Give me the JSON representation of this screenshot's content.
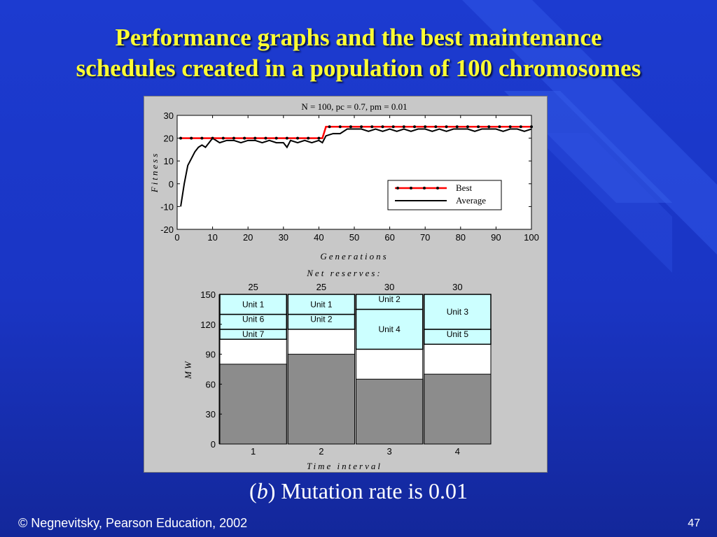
{
  "title": {
    "line1": "Performance graphs and the best maintenance",
    "line2": "schedules created in a population of 100 chromosomes"
  },
  "caption": {
    "prefix": "(",
    "b": "b",
    "suffix": ") Mutation rate is 0.01"
  },
  "footer": "© Negnevitsky, Pearson Education, 2002",
  "page_number": "47",
  "colors": {
    "title": "#ffff33",
    "best_line": "#ff0000",
    "reserve_fill": "#8c8c8c",
    "unit_fill": "#ccffff"
  },
  "chart_data": [
    {
      "type": "line",
      "title": "N = 100,  pc = 0.7,  pm = 0.01",
      "xlabel": "Generations",
      "ylabel": "Fitness",
      "xlim": [
        0,
        100
      ],
      "ylim": [
        -20,
        30
      ],
      "xticks": [
        "0",
        "10",
        "20",
        "30",
        "40",
        "50",
        "60",
        "70",
        "80",
        "90",
        "100"
      ],
      "yticks": [
        "30",
        "20",
        "10",
        "0",
        "-10",
        "-20"
      ],
      "legend_position": "right",
      "series": [
        {
          "name": "Best",
          "x": [
            1,
            41,
            42,
            100
          ],
          "values": [
            20,
            20,
            25,
            25
          ],
          "markers_every": 3
        },
        {
          "name": "Average",
          "x": [
            1,
            2,
            3,
            4,
            5,
            6,
            7,
            8,
            9,
            10,
            12,
            14,
            16,
            18,
            20,
            22,
            24,
            26,
            28,
            30,
            31,
            32,
            34,
            36,
            38,
            40,
            41,
            42,
            44,
            46,
            48,
            50,
            52,
            54,
            56,
            58,
            60,
            62,
            64,
            66,
            68,
            70,
            72,
            74,
            76,
            78,
            80,
            82,
            84,
            86,
            88,
            90,
            92,
            94,
            96,
            98,
            100
          ],
          "values": [
            -10,
            0,
            8,
            11,
            14,
            16,
            17,
            16,
            18,
            20,
            18,
            19,
            19,
            18,
            19,
            19,
            18,
            19,
            18,
            18,
            16,
            19,
            18,
            19,
            18,
            19,
            18,
            21,
            22,
            22,
            24,
            24,
            24,
            23,
            24,
            23,
            24,
            23,
            24,
            23,
            24,
            24,
            23,
            24,
            23,
            24,
            24,
            24,
            23,
            24,
            24,
            24,
            23,
            24,
            24,
            23,
            24
          ]
        }
      ]
    },
    {
      "type": "bar",
      "title": "Net reserves:",
      "xlabel": "Time interval",
      "ylabel": "MW",
      "ylim": [
        0,
        150
      ],
      "yticks": [
        "150",
        "120",
        "90",
        "60",
        "30",
        "0"
      ],
      "categories": [
        "1",
        "2",
        "3",
        "4"
      ],
      "net_reserves": [
        "25",
        "25",
        "30",
        "30"
      ],
      "stacks": [
        {
          "reserve_mw": 80,
          "segments": [
            {
              "label": "Unit 7",
              "from": 105,
              "to": 115
            },
            {
              "label": "Unit 6",
              "from": 115,
              "to": 130
            },
            {
              "label": "Unit 1",
              "from": 130,
              "to": 150
            }
          ]
        },
        {
          "reserve_mw": 90,
          "segments": [
            {
              "label": "Unit 2",
              "from": 115,
              "to": 130
            },
            {
              "label": "Unit 1",
              "from": 130,
              "to": 150
            }
          ]
        },
        {
          "reserve_mw": 65,
          "segments": [
            {
              "label": "Unit 4",
              "from": 95,
              "to": 135
            },
            {
              "label": "Unit 2",
              "from": 135,
              "to": 150
            }
          ]
        },
        {
          "reserve_mw": 70,
          "segments": [
            {
              "label": "Unit 5",
              "from": 100,
              "to": 115
            },
            {
              "label": "Unit 3",
              "from": 115,
              "to": 150
            }
          ]
        }
      ]
    }
  ]
}
